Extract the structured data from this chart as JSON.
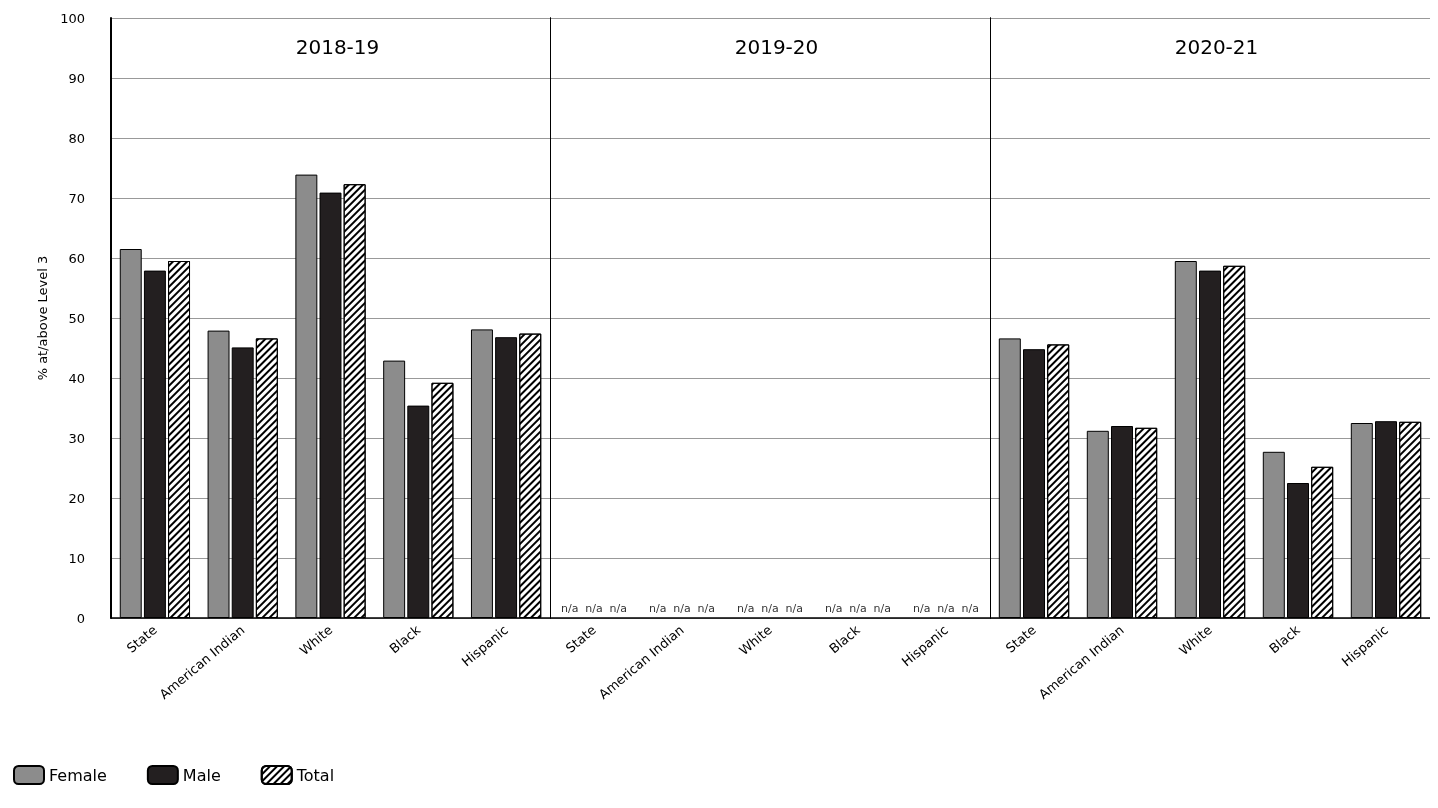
{
  "chart_data": [
    {
      "type": "bar",
      "title": "2018-19",
      "ylabel": "% at/above Level 3",
      "categories": [
        "State",
        "American Indian",
        "White",
        "Black",
        "Hispanic"
      ],
      "ylim": [
        0,
        100
      ],
      "yticks": [
        0,
        10,
        20,
        30,
        40,
        50,
        60,
        70,
        80,
        90,
        100
      ],
      "grid": "y",
      "legend": "bottom left",
      "series": [
        {
          "name": "Female",
          "color": "#8c8c8c",
          "values": [
            61.5,
            47.9,
            73.9,
            42.9,
            48.1
          ]
        },
        {
          "name": "Male",
          "color": "#231f20",
          "values": [
            57.9,
            45.1,
            70.9,
            35.4,
            46.8
          ]
        },
        {
          "name": "Total",
          "color": "#ffffff",
          "values": [
            59.5,
            46.6,
            72.3,
            39.2,
            47.4
          ]
        }
      ]
    },
    {
      "type": "bar",
      "title": "2019-20",
      "categories": [
        "State",
        "American Indian",
        "White",
        "Black",
        "Hispanic"
      ],
      "ylim": [
        0,
        100
      ],
      "yticks": [
        0,
        10,
        20,
        30,
        40,
        50,
        60,
        70,
        80,
        90,
        100
      ],
      "grid": "y",
      "tick_labels": "x",
      "series": [
        {
          "color": "#8c8c8c",
          "values": [
            null,
            null,
            null,
            null,
            null
          ],
          "value_labels": [
            "n/a",
            "n/a",
            "n/a",
            "n/a",
            "n/a"
          ]
        },
        {
          "color": "#231f20",
          "values": [
            null,
            null,
            null,
            null,
            null
          ],
          "value_labels": [
            "n/a",
            "n/a",
            "n/a",
            "n/a",
            "n/a"
          ]
        },
        {
          "color": "#ffffff",
          "values": [
            null,
            null,
            null,
            null,
            null
          ],
          "value_labels": [
            "n/a",
            "n/a",
            "n/a",
            "n/a",
            "n/a"
          ]
        }
      ]
    },
    {
      "type": "bar",
      "title": "2020-21",
      "categories": [
        "State",
        "American Indian",
        "White",
        "Black",
        "Hispanic"
      ],
      "ylim": [
        0,
        100
      ],
      "yticks": [
        0,
        10,
        20,
        30,
        40,
        50,
        60,
        70,
        80,
        90,
        100
      ],
      "grid": "y",
      "tick_labels": "x",
      "series": [
        {
          "color": "#8c8c8c",
          "values": [
            46.6,
            31.2,
            59.5,
            27.7,
            32.5
          ]
        },
        {
          "color": "#231f20",
          "values": [
            44.8,
            32.0,
            57.9,
            22.5,
            32.8
          ]
        },
        {
          "color": "#ffffff",
          "values": [
            45.6,
            31.7,
            58.7,
            25.2,
            32.7
          ]
        }
      ]
    }
  ]
}
